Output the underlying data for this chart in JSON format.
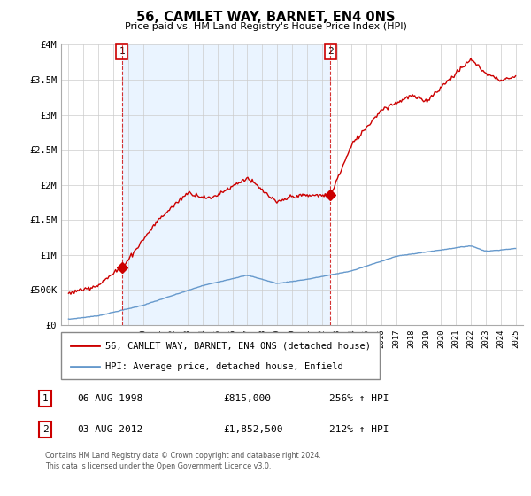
{
  "title": "56, CAMLET WAY, BARNET, EN4 0NS",
  "subtitle": "Price paid vs. HM Land Registry's House Price Index (HPI)",
  "legend_line1": "56, CAMLET WAY, BARNET, EN4 0NS (detached house)",
  "legend_line2": "HPI: Average price, detached house, Enfield",
  "annotation1_label": "1",
  "annotation1_date": "06-AUG-1998",
  "annotation1_price": "£815,000",
  "annotation1_hpi": "256% ↑ HPI",
  "annotation2_label": "2",
  "annotation2_date": "03-AUG-2012",
  "annotation2_price": "£1,852,500",
  "annotation2_hpi": "212% ↑ HPI",
  "footer": "Contains HM Land Registry data © Crown copyright and database right 2024.\nThis data is licensed under the Open Government Licence v3.0.",
  "house_color": "#cc0000",
  "hpi_color": "#6699cc",
  "vline_color": "#cc0000",
  "shade_color": "#ddeeff",
  "ylim": [
    0,
    4000000
  ],
  "yticks": [
    0,
    500000,
    1000000,
    1500000,
    2000000,
    2500000,
    3000000,
    3500000,
    4000000
  ],
  "ytick_labels": [
    "£0",
    "£500K",
    "£1M",
    "£1.5M",
    "£2M",
    "£2.5M",
    "£3M",
    "£3.5M",
    "£4M"
  ],
  "sale1_year": 1998.58,
  "sale1_price": 815000,
  "sale2_year": 2012.58,
  "sale2_price": 1852500,
  "xmin": 1995,
  "xmax": 2025
}
